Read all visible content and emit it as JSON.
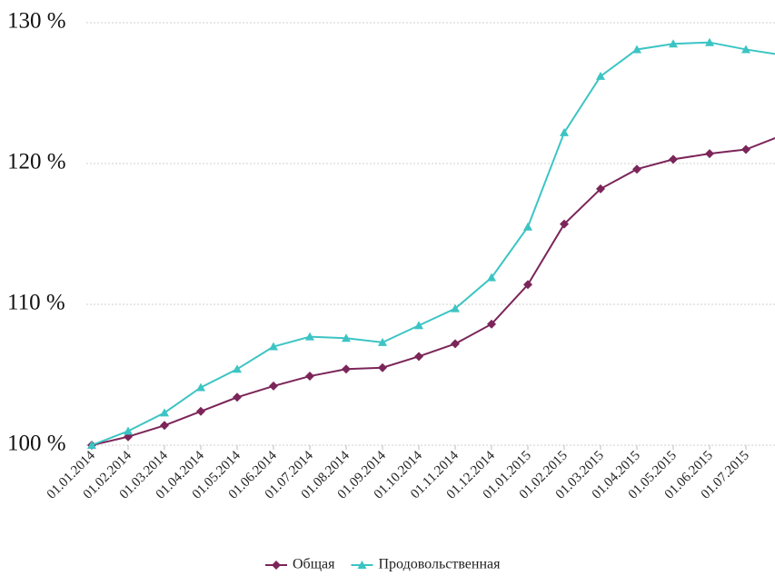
{
  "chart_data": {
    "type": "line",
    "categories": [
      "01.01.2014",
      "01.02.2014",
      "01.03.2014",
      "01.04.2014",
      "01.05.2014",
      "01.06.2014",
      "01.07.2014",
      "01.08.2014",
      "01.09.2014",
      "01.10.2014",
      "01.11.2014",
      "01.12.2014",
      "01.01.2015",
      "01.02.2015",
      "01.03.2015",
      "01.04.2015",
      "01.05.2015",
      "01.06.2015",
      "01.07.2015",
      null
    ],
    "series": [
      {
        "name": "Общая",
        "color": "#7b2559",
        "marker": "diamond",
        "values": [
          100,
          100.6,
          101.4,
          102.4,
          103.4,
          104.2,
          104.9,
          105.4,
          105.5,
          106.3,
          107.2,
          108.6,
          111.4,
          115.7,
          118.2,
          119.6,
          120.3,
          120.7,
          121.0,
          122.0
        ]
      },
      {
        "name": "Продовольственная",
        "color": "#3cc4c4",
        "marker": "triangle",
        "values": [
          100,
          101.0,
          102.3,
          104.1,
          105.4,
          107.0,
          107.7,
          107.6,
          107.3,
          108.5,
          109.7,
          111.9,
          115.5,
          122.2,
          126.2,
          128.1,
          128.5,
          128.6,
          128.1,
          127.7
        ]
      }
    ],
    "ylim": [
      100,
      130
    ],
    "yticks": [
      {
        "value": 100,
        "label": "100 %"
      },
      {
        "value": 110,
        "label": "110 %"
      },
      {
        "value": 120,
        "label": "120 %"
      },
      {
        "value": 130,
        "label": "130 %"
      }
    ],
    "grid": true,
    "legend": "bottom"
  }
}
